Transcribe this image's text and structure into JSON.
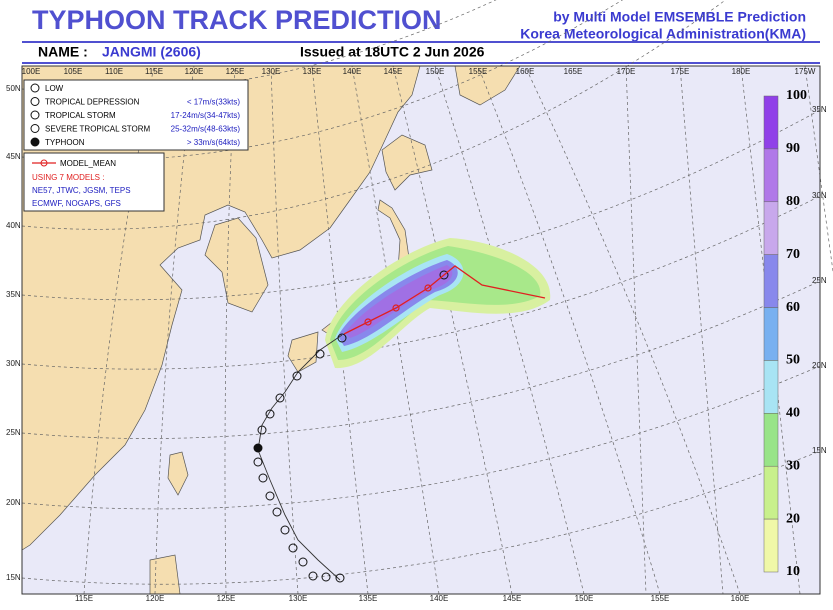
{
  "header": {
    "title": "TYPHOON  TRACK  PREDICTION",
    "source1": "by Multi Model EMSEMBLE Prediction",
    "source2": "Korea Meteorological Administration(KMA)"
  },
  "info": {
    "name_label": "NAME :",
    "name": "JANGMI (2606)",
    "issued": "Issued at  18UTC  2 Jun 2026"
  },
  "map": {
    "top_labels": [
      "100E",
      "105E",
      "110E",
      "115E",
      "120E",
      "125E",
      "130E",
      "135E",
      "140E",
      "145E",
      "150E",
      "155E",
      "160E",
      "165E",
      "170E",
      "175E",
      "180E",
      "175W"
    ],
    "left_labels": [
      "50N",
      "45N",
      "40N",
      "35N",
      "30N",
      "25N",
      "20N",
      "15N"
    ],
    "bottom_labels": [
      "115E",
      "120E",
      "125E",
      "130E",
      "135E",
      "140E",
      "145E",
      "150E",
      "155E",
      "160E"
    ],
    "right_labels": [
      "35N",
      "30N",
      "25N",
      "20N",
      "15N"
    ]
  },
  "legend": {
    "items": [
      {
        "label": "LOW",
        "range": ""
      },
      {
        "label": "TROPICAL DEPRESSION",
        "range": "< 17m/s(33kts)"
      },
      {
        "label": "TROPICAL STORM",
        "range": "17-24m/s(34-47kts)"
      },
      {
        "label": "SEVERE TROPICAL STORM",
        "range": "25-32m/s(48-63kts)"
      },
      {
        "label": "TYPHOON",
        "range": "> 33m/s(64kts)"
      }
    ],
    "mean": "MODEL_MEAN",
    "using": "USING 7 MODELS :",
    "models1": "NE57, JTWC, JGSM, TEPS",
    "models2": "ECMWF, NOGAPS, GFS"
  },
  "colorbar": {
    "labels": [
      100,
      90,
      80,
      70,
      60,
      50,
      40,
      30,
      20,
      10
    ],
    "colors": [
      "#9040e8",
      "#b078e8",
      "#c8a8ec",
      "#8888ec",
      "#78b0f0",
      "#a8e4f4",
      "#98e488",
      "#c8f08c",
      "#f0f8a8"
    ]
  }
}
